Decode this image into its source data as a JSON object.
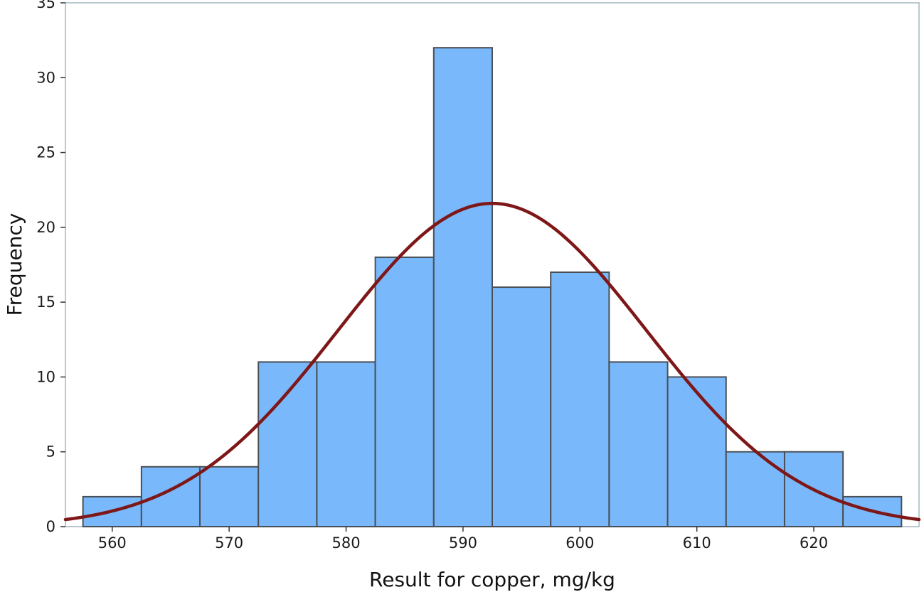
{
  "chart_data": {
    "type": "bar",
    "subtype": "histogram",
    "title": "",
    "xlabel": "Result for copper, mg/kg",
    "ylabel": "Frequency",
    "xlim": [
      556,
      629
    ],
    "ylim": [
      0,
      35
    ],
    "xticks": [
      560,
      570,
      580,
      590,
      600,
      610,
      620
    ],
    "yticks": [
      0,
      5,
      10,
      15,
      20,
      25,
      30,
      35
    ],
    "bin_width": 5,
    "bins": [
      {
        "start": 557.5,
        "end": 562.5,
        "count": 2
      },
      {
        "start": 562.5,
        "end": 567.5,
        "count": 4
      },
      {
        "start": 567.5,
        "end": 572.5,
        "count": 4
      },
      {
        "start": 572.5,
        "end": 577.5,
        "count": 11
      },
      {
        "start": 577.5,
        "end": 582.5,
        "count": 11
      },
      {
        "start": 582.5,
        "end": 587.5,
        "count": 18
      },
      {
        "start": 587.5,
        "end": 592.5,
        "count": 32
      },
      {
        "start": 592.5,
        "end": 597.5,
        "count": 16
      },
      {
        "start": 597.5,
        "end": 602.5,
        "count": 17
      },
      {
        "start": 602.5,
        "end": 607.5,
        "count": 11
      },
      {
        "start": 607.5,
        "end": 612.5,
        "count": 10
      },
      {
        "start": 612.5,
        "end": 617.5,
        "count": 5
      },
      {
        "start": 617.5,
        "end": 622.5,
        "count": 5
      },
      {
        "start": 622.5,
        "end": 627.5,
        "count": 2
      }
    ],
    "fit_curve": {
      "type": "normal",
      "mean": 592.5,
      "std_dev": 13.2,
      "peak": 21.6
    },
    "grid": false,
    "legend": "none",
    "colors": {
      "bar_fill": "#79b9fb",
      "bar_stroke": "#4a4f55",
      "curve": "#7e1717",
      "frame": "#b9c9cf"
    }
  }
}
